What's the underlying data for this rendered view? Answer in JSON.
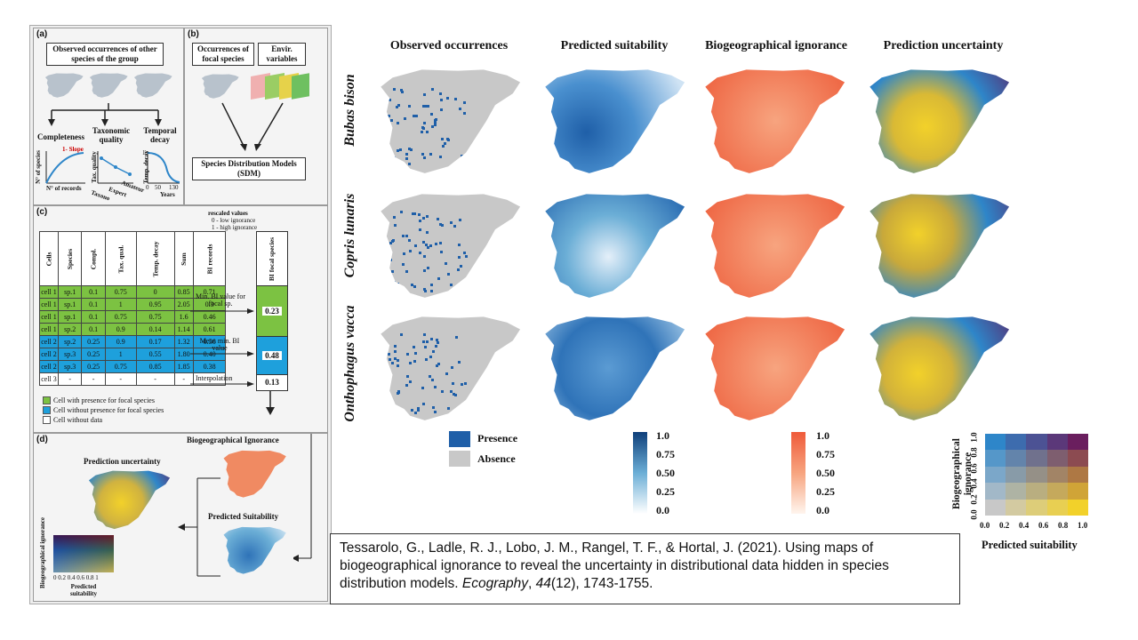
{
  "left_figure": {
    "panel_a": {
      "label": "(a)",
      "box_title": "Observed occurrences of other species of the group",
      "metrics": [
        {
          "title": "Completeness",
          "y_axis": "N° of species",
          "x_axis": "N° of records",
          "annotation": "1- Slope"
        },
        {
          "title": "Taxonomic quality",
          "y_axis": "Tax. quality",
          "x_ticks": [
            "Taxono",
            "Expert",
            "Amateur"
          ]
        },
        {
          "title": "Temporal decay",
          "y_axis": "Temp. decay",
          "x_axis": "Years",
          "x_ticks": [
            "0",
            "50",
            "130"
          ],
          "y_tick": "1"
        }
      ]
    },
    "panel_b": {
      "label": "(b)",
      "box1": "Occurrences of focal species",
      "box2": "Envir. variables",
      "sdm_box": "Species Distribution Models (SDM)"
    },
    "panel_c": {
      "label": "(c)",
      "rescale_note": [
        "rescaled values",
        "0 - low ignorance",
        "1 - high ignorance"
      ],
      "headers": [
        "Cells",
        "Species",
        "Compl.",
        "Tax. qual.",
        "Temp. decay",
        "Sum",
        "BI records"
      ],
      "rows": [
        [
          "cell 1",
          "sp.1",
          "0.1",
          "0.75",
          "0",
          "0.85",
          "0.71"
        ],
        [
          "cell 1",
          "sp.1",
          "0.1",
          "1",
          "0.95",
          "2.05",
          "0.3"
        ],
        [
          "cell 1",
          "sp.1",
          "0.1",
          "0.75",
          "0.75",
          "1.6",
          "0.46"
        ],
        [
          "cell 1",
          "sp.2",
          "0.1",
          "0.9",
          "0.14",
          "1.14",
          "0.61"
        ],
        [
          "cell 2",
          "sp.2",
          "0.25",
          "0.9",
          "0.17",
          "1.32",
          "0.56"
        ],
        [
          "cell 2",
          "sp.3",
          "0.25",
          "1",
          "0.55",
          "1.80",
          "0.40"
        ],
        [
          "cell 2",
          "sp.3",
          "0.25",
          "0.75",
          "0.85",
          "1.85",
          "0.38"
        ],
        [
          "cell 3",
          "-",
          "-",
          "-",
          "-",
          "-",
          "-"
        ]
      ],
      "row_types": [
        "presence",
        "presence",
        "presence",
        "presence",
        "absence",
        "absence",
        "absence",
        "nodata"
      ],
      "arrow_labels": [
        "Min. BI value for focal sp.",
        "Mean min. BI value",
        "Interpolation"
      ],
      "focal_header": "BI focal species",
      "focal_values": [
        "0.23",
        "0.48",
        "0.13"
      ],
      "legend": [
        {
          "label": "Cell with presence for focal species",
          "color": "#7cc242"
        },
        {
          "label": "Cell without presence for focal species",
          "color": "#1ea0dc"
        },
        {
          "label": "Cell without data",
          "color": "#ffffff"
        }
      ]
    },
    "panel_d": {
      "label": "(d)",
      "bi_title": "Biogeographical Ignorance",
      "pu_title": "Prediction uncertainty",
      "ps_title": "Predicted Suitability",
      "mini_legend_y": "Biogeographical ignorance",
      "mini_legend_x": "Predicted suitability",
      "mini_ticks": "0 0.2 0.4 0.6 0.8 1"
    }
  },
  "right_figure": {
    "column_titles": [
      "Observed occurrences",
      "Predicted suitability",
      "Biogeographical ignorance",
      "Prediction uncertainty"
    ],
    "row_titles": [
      "Bubas bison",
      "Copris lunaris",
      "Onthophagus vacca"
    ],
    "occurrence_legend": [
      {
        "label": "Presence",
        "color": "#1f5fa8"
      },
      {
        "label": "Absence",
        "color": "#c8c8c8"
      }
    ],
    "suitability_scale": [
      "1.0",
      "0.75",
      "0.50",
      "0.25",
      "0.0"
    ],
    "ignorance_scale": [
      "1.0",
      "0.75",
      "0.50",
      "0.25",
      "0.0"
    ],
    "bivariate_legend": {
      "y_label": "Biogeographical ignorance",
      "x_label": "Predicted suitability",
      "ticks": [
        "0.0",
        "0.2",
        "0.4",
        "0.6",
        "0.8",
        "1.0"
      ]
    },
    "colors": {
      "suitability_high": "#0e3f7a",
      "suitability_low": "#e8f2fb",
      "ignorance_high": "#ef5a3a",
      "ignorance_low": "#fde8d8",
      "uncertainty_blue": "#2e86c9",
      "uncertainty_yellow": "#f2d12a",
      "uncertainty_purple": "#5a2a6e",
      "absence_grey": "#c8c8c8"
    }
  },
  "citation": {
    "authors_title": "Tessarolo, G., Ladle, R. J., Lobo, J. M., Rangel, T. F., & Hortal, J. (2021). Using maps of biogeographical ignorance to reveal the uncertainty in distributional data hidden in species distribution models.",
    "journal": "Ecography",
    "volume": "44",
    "issue_pages": "(12), 1743-1755."
  }
}
